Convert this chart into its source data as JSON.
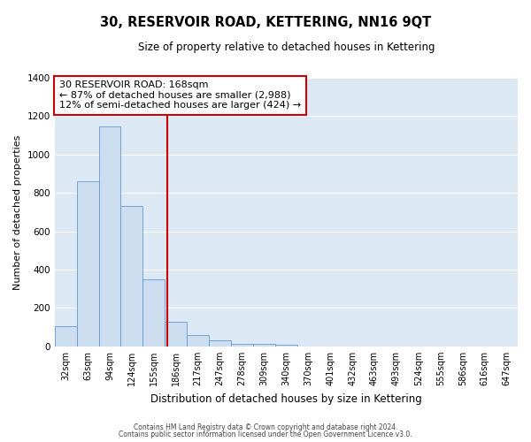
{
  "title": "30, RESERVOIR ROAD, KETTERING, NN16 9QT",
  "subtitle": "Size of property relative to detached houses in Kettering",
  "xlabel": "Distribution of detached houses by size in Kettering",
  "ylabel": "Number of detached properties",
  "bin_labels": [
    "32sqm",
    "63sqm",
    "94sqm",
    "124sqm",
    "155sqm",
    "186sqm",
    "217sqm",
    "247sqm",
    "278sqm",
    "309sqm",
    "340sqm",
    "370sqm",
    "401sqm",
    "432sqm",
    "463sqm",
    "493sqm",
    "524sqm",
    "555sqm",
    "586sqm",
    "616sqm",
    "647sqm"
  ],
  "bar_heights": [
    105,
    860,
    1145,
    730,
    348,
    130,
    60,
    30,
    15,
    15,
    10,
    0,
    0,
    0,
    0,
    0,
    0,
    0,
    0,
    0,
    0
  ],
  "bar_color": "#ccddf0",
  "bar_edgecolor": "#6699cc",
  "plot_bg_color": "#dde8f5",
  "fig_bg_color": "#ffffff",
  "grid_color": "#ffffff",
  "vline_x": 4.62,
  "vline_color": "#cc0000",
  "ylim": [
    0,
    1400
  ],
  "yticks": [
    0,
    200,
    400,
    600,
    800,
    1000,
    1200,
    1400
  ],
  "annotation_title": "30 RESERVOIR ROAD: 168sqm",
  "annotation_line1": "← 87% of detached houses are smaller (2,988)",
  "annotation_line2": "12% of semi-detached houses are larger (424) →",
  "annotation_box_facecolor": "#ffffff",
  "annotation_box_edgecolor": "#cc0000",
  "footer1": "Contains HM Land Registry data © Crown copyright and database right 2024.",
  "footer2": "Contains public sector information licensed under the Open Government Licence v3.0."
}
